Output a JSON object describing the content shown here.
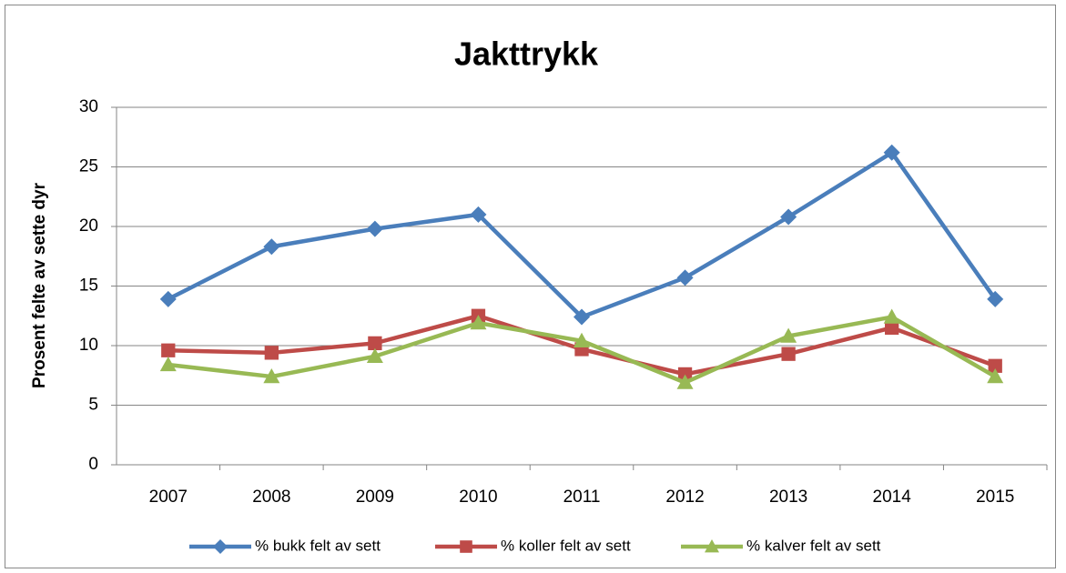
{
  "chart_data": {
    "type": "line",
    "title": "Jakttrykk",
    "y_label": "Prosent felte av sette dyr",
    "categories": [
      "2007",
      "2008",
      "2009",
      "2010",
      "2011",
      "2012",
      "2013",
      "2014",
      "2015"
    ],
    "series": [
      {
        "name": "% bukk felt av sett",
        "color": "#4a7ebb",
        "marker": "diamond",
        "values": [
          13.9,
          18.3,
          19.8,
          21.0,
          12.4,
          15.7,
          20.8,
          26.2,
          13.9
        ]
      },
      {
        "name": "% koller felt av sett",
        "color": "#be4b48",
        "marker": "square",
        "values": [
          9.6,
          9.4,
          10.2,
          12.5,
          9.7,
          7.6,
          9.3,
          11.5,
          8.3
        ]
      },
      {
        "name": "% kalver felt av sett",
        "color": "#98b954",
        "marker": "triangle",
        "values": [
          8.4,
          7.4,
          9.1,
          11.9,
          10.4,
          6.9,
          10.8,
          12.4,
          7.4
        ]
      }
    ],
    "ylim": [
      0,
      30
    ],
    "yticks": [
      0,
      5,
      10,
      15,
      20,
      25,
      30
    ],
    "grid": true,
    "legend": "bottom"
  }
}
